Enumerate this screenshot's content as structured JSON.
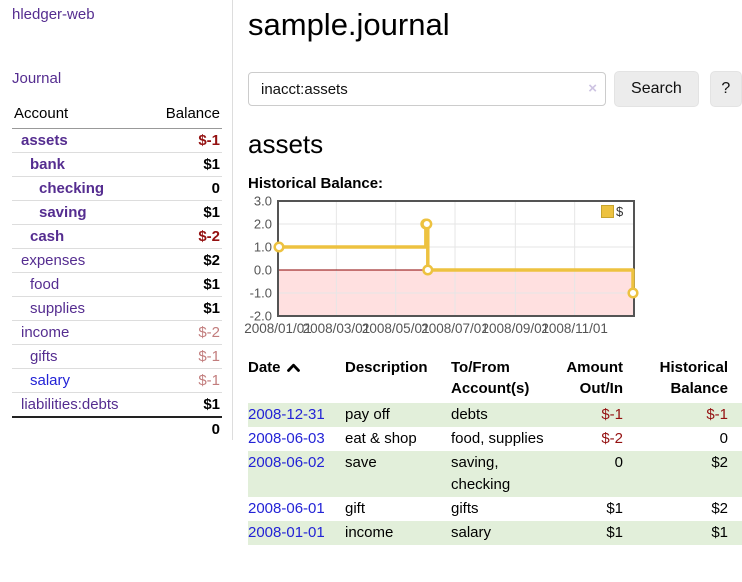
{
  "app": {
    "brand": "hledger-web",
    "nav": {
      "journal": "Journal"
    }
  },
  "sidebar": {
    "header": {
      "account": "Account",
      "balance": "Balance"
    },
    "accounts": [
      {
        "name": "assets",
        "depth": 1,
        "bold": true,
        "balance": "$-1",
        "balance_class": "neg"
      },
      {
        "name": "bank",
        "depth": 2,
        "bold": true,
        "balance": "$1",
        "balance_class": "pos"
      },
      {
        "name": "checking",
        "depth": 3,
        "bold": true,
        "balance": "0",
        "balance_class": "pos"
      },
      {
        "name": "saving",
        "depth": 3,
        "bold": true,
        "balance": "$1",
        "balance_class": "pos"
      },
      {
        "name": "cash",
        "depth": 2,
        "bold": true,
        "balance": "$-2",
        "balance_class": "neg"
      },
      {
        "name": "expenses",
        "depth": 1,
        "bold": false,
        "balance": "$2",
        "balance_class": "pos"
      },
      {
        "name": "food",
        "depth": 2,
        "bold": false,
        "balance": "$1",
        "balance_class": "pos"
      },
      {
        "name": "supplies",
        "depth": 2,
        "bold": false,
        "balance": "$1",
        "balance_class": "pos"
      },
      {
        "name": "income",
        "depth": 1,
        "bold": false,
        "balance": "$-2",
        "balance_class": "dim"
      },
      {
        "name": "gifts",
        "depth": 2,
        "bold": false,
        "balance": "$-1",
        "balance_class": "dim"
      },
      {
        "name": "salary",
        "depth": 2,
        "bold": false,
        "blue": true,
        "balance": "$-1",
        "balance_class": "dim"
      },
      {
        "name": "liabilities:debts",
        "depth": 1,
        "bold": false,
        "balance": "$1",
        "balance_class": "pos"
      }
    ],
    "total": "0"
  },
  "header": {
    "title": "sample.journal"
  },
  "search": {
    "value": "inacct:assets",
    "clear_icon": "×",
    "button_label": "Search",
    "help_label": "?"
  },
  "account_page": {
    "heading": "assets",
    "chart_title": "Historical Balance:"
  },
  "chart_data": {
    "type": "line",
    "style": "steps-after",
    "title": "Historical Balance",
    "xlabel": "",
    "ylabel": "",
    "x_range": [
      "2008-01-01",
      "2009-01-01"
    ],
    "ylim": [
      -2,
      3
    ],
    "y_ticks": [
      "3.0",
      "2.0",
      "1.0",
      "0.0",
      "-1.0",
      "-2.0"
    ],
    "x_ticks": [
      "2008/01/01",
      "2008/03/01",
      "2008/05/01",
      "2008/07/01",
      "2008/09/01",
      "2008/11/01"
    ],
    "grid": true,
    "legend_position": "top-right",
    "series": [
      {
        "name": "$",
        "color": "#edc240",
        "points": [
          {
            "x": "2008-01-01",
            "y": 1
          },
          {
            "x": "2008-06-01",
            "y": 2
          },
          {
            "x": "2008-06-02",
            "y": 2
          },
          {
            "x": "2008-06-03",
            "y": 0
          },
          {
            "x": "2008-12-31",
            "y": -1
          }
        ]
      }
    ],
    "negative_region_color": "rgba(255,0,0,0.12)",
    "zero_line_color": "#8b0000",
    "axis_text_color": "#545454",
    "border_color": "#545454",
    "gridline_color": "#e6e6e6"
  },
  "register": {
    "columns": [
      {
        "label": "Date",
        "align": "left",
        "sorted_asc": true
      },
      {
        "label": "Description",
        "align": "left"
      },
      {
        "label": "To/From Account(s)",
        "align": "left"
      },
      {
        "label": "Amount Out/In",
        "align": "right"
      },
      {
        "label": "Historical Balance",
        "align": "right"
      }
    ],
    "rows": [
      {
        "date": "2008-12-31",
        "description": "pay off",
        "accounts": "debts",
        "amount": "$-1",
        "balance": "$-1"
      },
      {
        "date": "2008-06-03",
        "description": "eat & shop",
        "accounts": "food, supplies",
        "amount": "$-2",
        "balance": "0"
      },
      {
        "date": "2008-06-02",
        "description": "save",
        "accounts": "saving, checking",
        "amount": "0",
        "balance": "$2"
      },
      {
        "date": "2008-06-01",
        "description": "gift",
        "accounts": "gifts",
        "amount": "$1",
        "balance": "$2"
      },
      {
        "date": "2008-01-01",
        "description": "income",
        "accounts": "salary",
        "amount": "$1",
        "balance": "$1"
      }
    ]
  }
}
